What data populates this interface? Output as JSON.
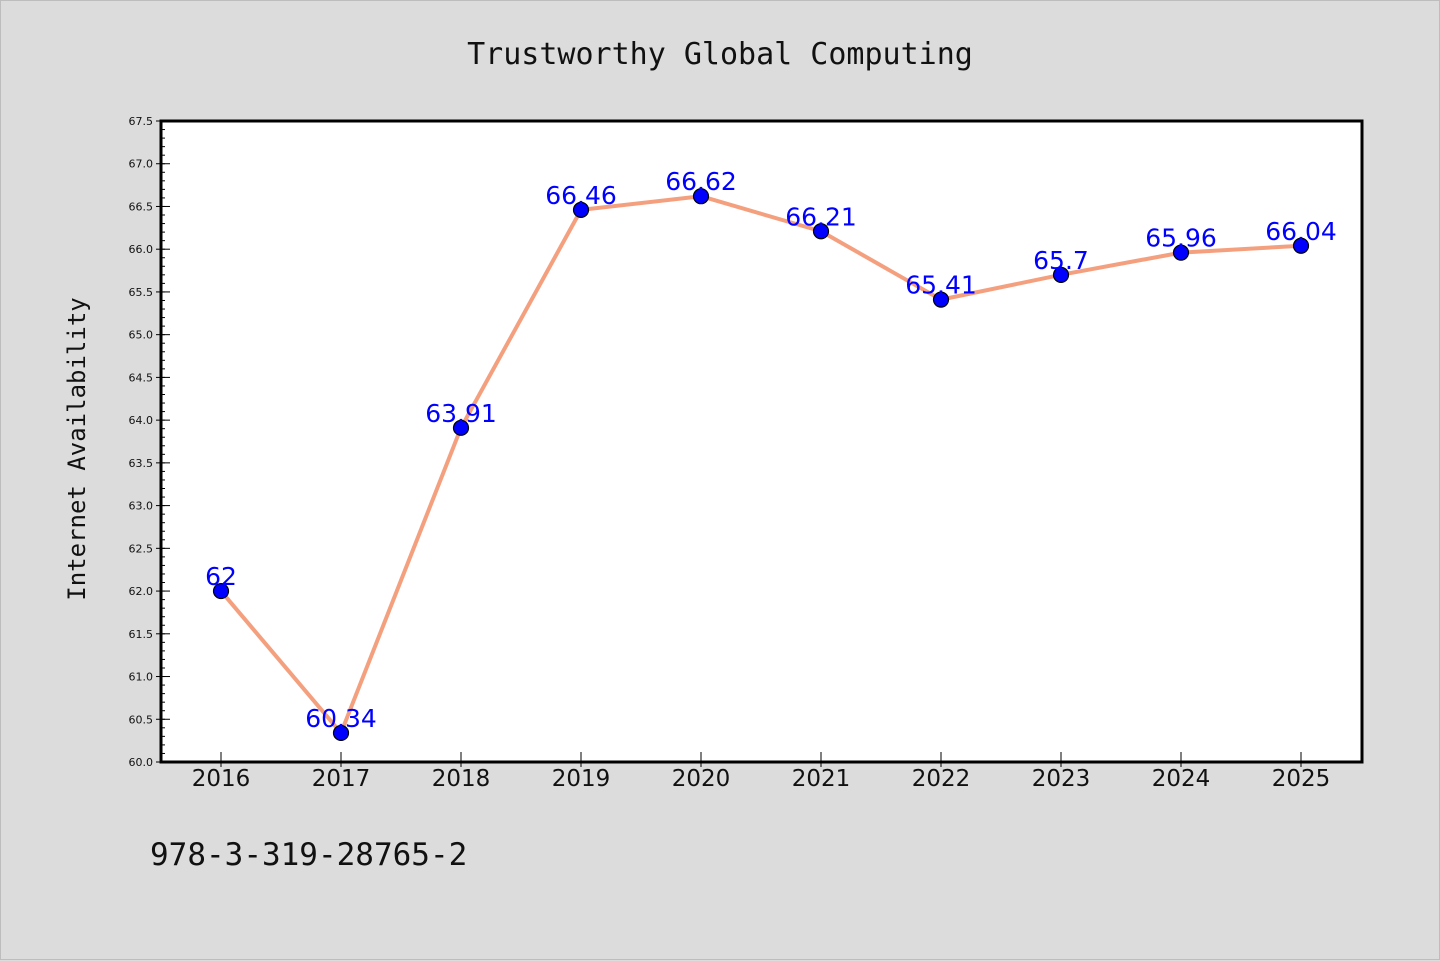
{
  "chart_data": {
    "type": "line",
    "title": "Trustworthy Global Computing",
    "xlabel": "",
    "ylabel": "Internet Availability",
    "categories": [
      "2016",
      "2017",
      "2018",
      "2019",
      "2020",
      "2021",
      "2022",
      "2023",
      "2024",
      "2025"
    ],
    "series": [
      {
        "values": [
          62,
          60.34,
          63.91,
          66.46,
          66.62,
          66.21,
          65.41,
          65.7,
          65.96,
          66.04
        ],
        "labels": [
          "62",
          "60.34",
          "63.91",
          "66.46",
          "66.62",
          "66.21",
          "65.41",
          "65.7",
          "65.96",
          "66.04"
        ]
      }
    ],
    "ylim": [
      60.0,
      67.5
    ],
    "yticks": [
      "60.0",
      "60.5",
      "61.0",
      "61.5",
      "62.0",
      "62.5",
      "63.0",
      "63.5",
      "64.0",
      "64.5",
      "65.0",
      "65.5",
      "66.0",
      "66.5",
      "67.0",
      "67.5"
    ],
    "grid": false,
    "legend": "none",
    "colors": {
      "line": "#f4a07f",
      "marker": "#0000ff",
      "label": "#0000ff",
      "figure_bg": "#dcdcdc",
      "plot_bg": "#ffffff"
    }
  },
  "footer": {
    "text": "978-3-319-28765-2"
  }
}
